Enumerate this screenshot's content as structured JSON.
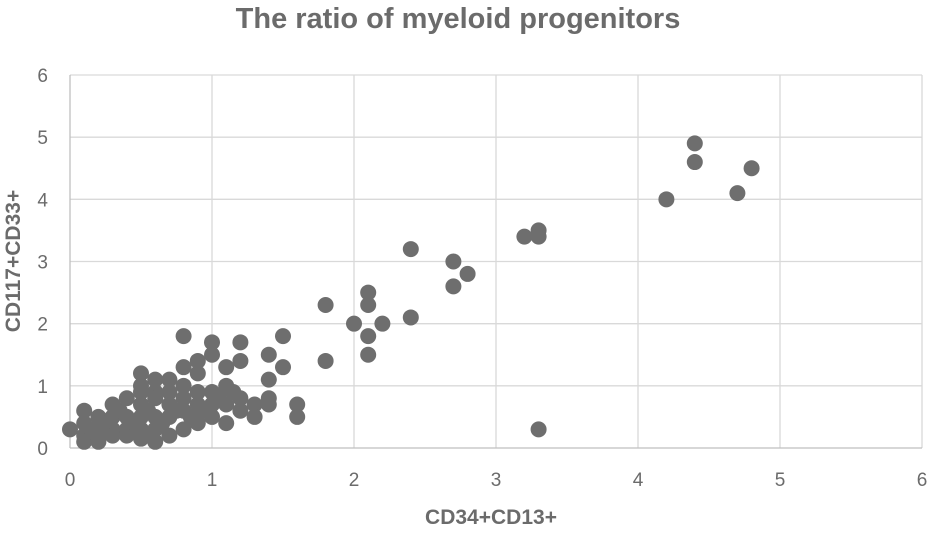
{
  "chart_data": {
    "type": "scatter",
    "title": "The ratio of myeloid progenitors",
    "xlabel": "CD34+CD13+",
    "ylabel": "CD117+CD33+",
    "xlim": [
      0,
      6
    ],
    "ylim": [
      0,
      6
    ],
    "xticks": [
      "0",
      "1",
      "2",
      "3",
      "4",
      "5",
      "6"
    ],
    "yticks": [
      "0",
      "1",
      "2",
      "3",
      "4",
      "5",
      "6"
    ],
    "grid": true,
    "legend": "none",
    "point_color": "#6e6e6e",
    "points": [
      [
        0.0,
        0.3
      ],
      [
        0.1,
        0.6
      ],
      [
        0.1,
        0.4
      ],
      [
        0.1,
        0.2
      ],
      [
        0.1,
        0.1
      ],
      [
        0.15,
        0.3
      ],
      [
        0.2,
        0.5
      ],
      [
        0.2,
        0.3
      ],
      [
        0.2,
        0.15
      ],
      [
        0.2,
        0.1
      ],
      [
        0.25,
        0.4
      ],
      [
        0.3,
        0.7
      ],
      [
        0.3,
        0.5
      ],
      [
        0.3,
        0.3
      ],
      [
        0.3,
        0.2
      ],
      [
        0.35,
        0.6
      ],
      [
        0.4,
        0.8
      ],
      [
        0.4,
        0.5
      ],
      [
        0.4,
        0.3
      ],
      [
        0.4,
        0.2
      ],
      [
        0.45,
        0.4
      ],
      [
        0.5,
        1.2
      ],
      [
        0.5,
        1.0
      ],
      [
        0.5,
        0.9
      ],
      [
        0.5,
        0.7
      ],
      [
        0.5,
        0.5
      ],
      [
        0.5,
        0.3
      ],
      [
        0.5,
        0.15
      ],
      [
        0.55,
        0.6
      ],
      [
        0.55,
        0.2
      ],
      [
        0.6,
        1.1
      ],
      [
        0.6,
        0.9
      ],
      [
        0.6,
        0.8
      ],
      [
        0.6,
        0.5
      ],
      [
        0.6,
        0.3
      ],
      [
        0.6,
        0.1
      ],
      [
        0.65,
        0.4
      ],
      [
        0.7,
        1.1
      ],
      [
        0.7,
        0.9
      ],
      [
        0.7,
        0.7
      ],
      [
        0.7,
        0.5
      ],
      [
        0.7,
        0.2
      ],
      [
        0.75,
        0.6
      ],
      [
        0.8,
        1.8
      ],
      [
        0.8,
        1.3
      ],
      [
        0.8,
        1.0
      ],
      [
        0.8,
        0.8
      ],
      [
        0.8,
        0.6
      ],
      [
        0.8,
        0.3
      ],
      [
        0.85,
        0.5
      ],
      [
        0.9,
        1.4
      ],
      [
        0.9,
        1.2
      ],
      [
        0.9,
        0.9
      ],
      [
        0.9,
        0.7
      ],
      [
        0.9,
        0.4
      ],
      [
        0.95,
        0.6
      ],
      [
        1.0,
        1.7
      ],
      [
        1.0,
        1.5
      ],
      [
        1.0,
        0.9
      ],
      [
        1.0,
        0.7
      ],
      [
        1.0,
        0.5
      ],
      [
        1.05,
        0.8
      ],
      [
        1.1,
        1.3
      ],
      [
        1.1,
        1.0
      ],
      [
        1.1,
        0.7
      ],
      [
        1.1,
        0.4
      ],
      [
        1.15,
        0.9
      ],
      [
        1.2,
        1.7
      ],
      [
        1.2,
        1.4
      ],
      [
        1.2,
        0.8
      ],
      [
        1.2,
        0.6
      ],
      [
        1.3,
        0.7
      ],
      [
        1.3,
        0.5
      ],
      [
        1.4,
        1.5
      ],
      [
        1.4,
        1.1
      ],
      [
        1.4,
        0.8
      ],
      [
        1.4,
        0.7
      ],
      [
        1.5,
        1.8
      ],
      [
        1.5,
        1.3
      ],
      [
        1.6,
        0.7
      ],
      [
        1.6,
        0.5
      ],
      [
        1.8,
        2.3
      ],
      [
        1.8,
        1.4
      ],
      [
        2.0,
        2.0
      ],
      [
        2.1,
        2.5
      ],
      [
        2.1,
        2.3
      ],
      [
        2.1,
        1.8
      ],
      [
        2.1,
        1.5
      ],
      [
        2.2,
        2.0
      ],
      [
        2.4,
        3.2
      ],
      [
        2.4,
        2.1
      ],
      [
        2.7,
        3.0
      ],
      [
        2.7,
        2.6
      ],
      [
        2.8,
        2.8
      ],
      [
        3.2,
        3.4
      ],
      [
        3.3,
        3.5
      ],
      [
        3.3,
        3.4
      ],
      [
        3.3,
        0.3
      ],
      [
        4.2,
        4.0
      ],
      [
        4.4,
        4.9
      ],
      [
        4.4,
        4.6
      ],
      [
        4.7,
        4.1
      ],
      [
        4.8,
        4.5
      ]
    ]
  }
}
